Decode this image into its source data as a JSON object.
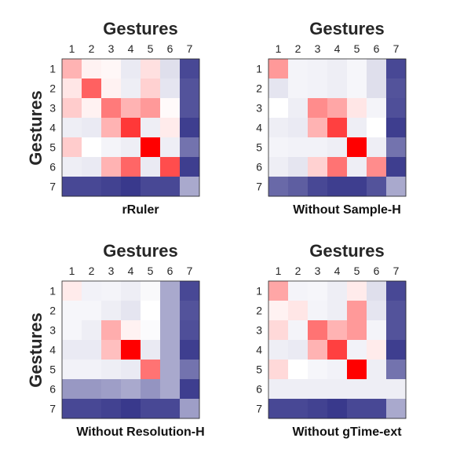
{
  "chart_data": [
    {
      "type": "heatmap",
      "title": "Gestures",
      "ylabel": "Gestures",
      "xlabel": "rRuler",
      "x_ticks": [
        "1",
        "2",
        "3",
        "4",
        "5",
        "6",
        "7"
      ],
      "y_ticks": [
        "1",
        "2",
        "3",
        "4",
        "5",
        "6",
        "7"
      ],
      "values": [
        [
          0.3,
          0.05,
          0.03,
          -0.1,
          0.12,
          -0.15,
          -0.85
        ],
        [
          0.1,
          0.62,
          0.05,
          -0.08,
          0.18,
          -0.12,
          -0.8
        ],
        [
          0.2,
          0.05,
          0.52,
          0.3,
          0.4,
          0.02,
          -0.8
        ],
        [
          -0.08,
          -0.1,
          0.3,
          0.78,
          -0.08,
          0.08,
          -0.9
        ],
        [
          0.2,
          0.0,
          -0.05,
          -0.08,
          1.0,
          -0.08,
          -0.65
        ],
        [
          -0.08,
          -0.1,
          0.3,
          0.6,
          -0.1,
          0.7,
          -0.9
        ],
        [
          -0.85,
          -0.85,
          -0.88,
          -0.92,
          -0.85,
          -0.85,
          -0.4
        ]
      ]
    },
    {
      "type": "heatmap",
      "title": "Gestures",
      "xlabel": "Without Sample-H",
      "x_ticks": [
        "1",
        "2",
        "3",
        "4",
        "5",
        "6",
        "7"
      ],
      "y_ticks": [
        "1",
        "2",
        "3",
        "4",
        "5",
        "6",
        "7"
      ],
      "values": [
        [
          0.4,
          -0.05,
          -0.06,
          -0.08,
          -0.04,
          -0.15,
          -0.85
        ],
        [
          -0.12,
          -0.05,
          -0.06,
          -0.08,
          -0.04,
          -0.15,
          -0.8
        ],
        [
          0.0,
          -0.08,
          0.45,
          0.35,
          0.1,
          -0.05,
          -0.82
        ],
        [
          -0.08,
          -0.1,
          0.3,
          0.75,
          -0.08,
          0.0,
          -0.9
        ],
        [
          -0.05,
          -0.06,
          -0.06,
          -0.08,
          1.0,
          -0.08,
          -0.65
        ],
        [
          -0.08,
          -0.12,
          0.18,
          0.55,
          -0.08,
          0.45,
          -0.9
        ],
        [
          -0.7,
          -0.75,
          -0.85,
          -0.9,
          -0.9,
          -0.8,
          -0.4
        ]
      ]
    },
    {
      "type": "heatmap",
      "title": "Gestures",
      "ylabel": "Gestures",
      "xlabel": "Without Resolution-H",
      "x_ticks": [
        "1",
        "2",
        "3",
        "4",
        "5",
        "6",
        "7"
      ],
      "y_ticks": [
        "1",
        "2",
        "3",
        "4",
        "5",
        "6",
        "7"
      ],
      "values": [
        [
          0.08,
          -0.06,
          -0.05,
          -0.08,
          -0.03,
          -0.4,
          -0.85
        ],
        [
          -0.04,
          -0.04,
          -0.08,
          -0.12,
          0.0,
          -0.4,
          -0.8
        ],
        [
          -0.04,
          -0.08,
          0.32,
          0.05,
          -0.02,
          -0.4,
          -0.82
        ],
        [
          -0.1,
          -0.1,
          0.25,
          1.0,
          -0.1,
          -0.4,
          -0.9
        ],
        [
          -0.06,
          -0.06,
          -0.08,
          -0.1,
          0.55,
          -0.4,
          -0.65
        ],
        [
          -0.48,
          -0.48,
          -0.45,
          -0.4,
          -0.5,
          -0.4,
          -0.9
        ],
        [
          -0.85,
          -0.85,
          -0.88,
          -0.92,
          -0.85,
          -0.85,
          -0.45
        ]
      ]
    },
    {
      "type": "heatmap",
      "title": "Gestures",
      "xlabel": "Without gTime-ext",
      "x_ticks": [
        "1",
        "2",
        "3",
        "4",
        "5",
        "6",
        "7"
      ],
      "y_ticks": [
        "1",
        "2",
        "3",
        "4",
        "5",
        "6",
        "7"
      ],
      "values": [
        [
          0.35,
          -0.05,
          -0.04,
          -0.08,
          0.08,
          -0.15,
          -0.85
        ],
        [
          0.05,
          0.1,
          -0.05,
          -0.08,
          0.4,
          -0.12,
          -0.8
        ],
        [
          0.15,
          -0.05,
          0.55,
          0.3,
          0.4,
          -0.05,
          -0.8
        ],
        [
          -0.08,
          -0.1,
          0.3,
          0.75,
          -0.06,
          0.08,
          -0.9
        ],
        [
          0.15,
          0.0,
          -0.04,
          -0.06,
          1.0,
          -0.08,
          -0.65
        ],
        [
          -0.08,
          -0.08,
          -0.08,
          -0.08,
          -0.08,
          -0.08,
          -0.08
        ],
        [
          -0.85,
          -0.85,
          -0.88,
          -0.92,
          -0.85,
          -0.85,
          -0.4
        ]
      ]
    }
  ]
}
